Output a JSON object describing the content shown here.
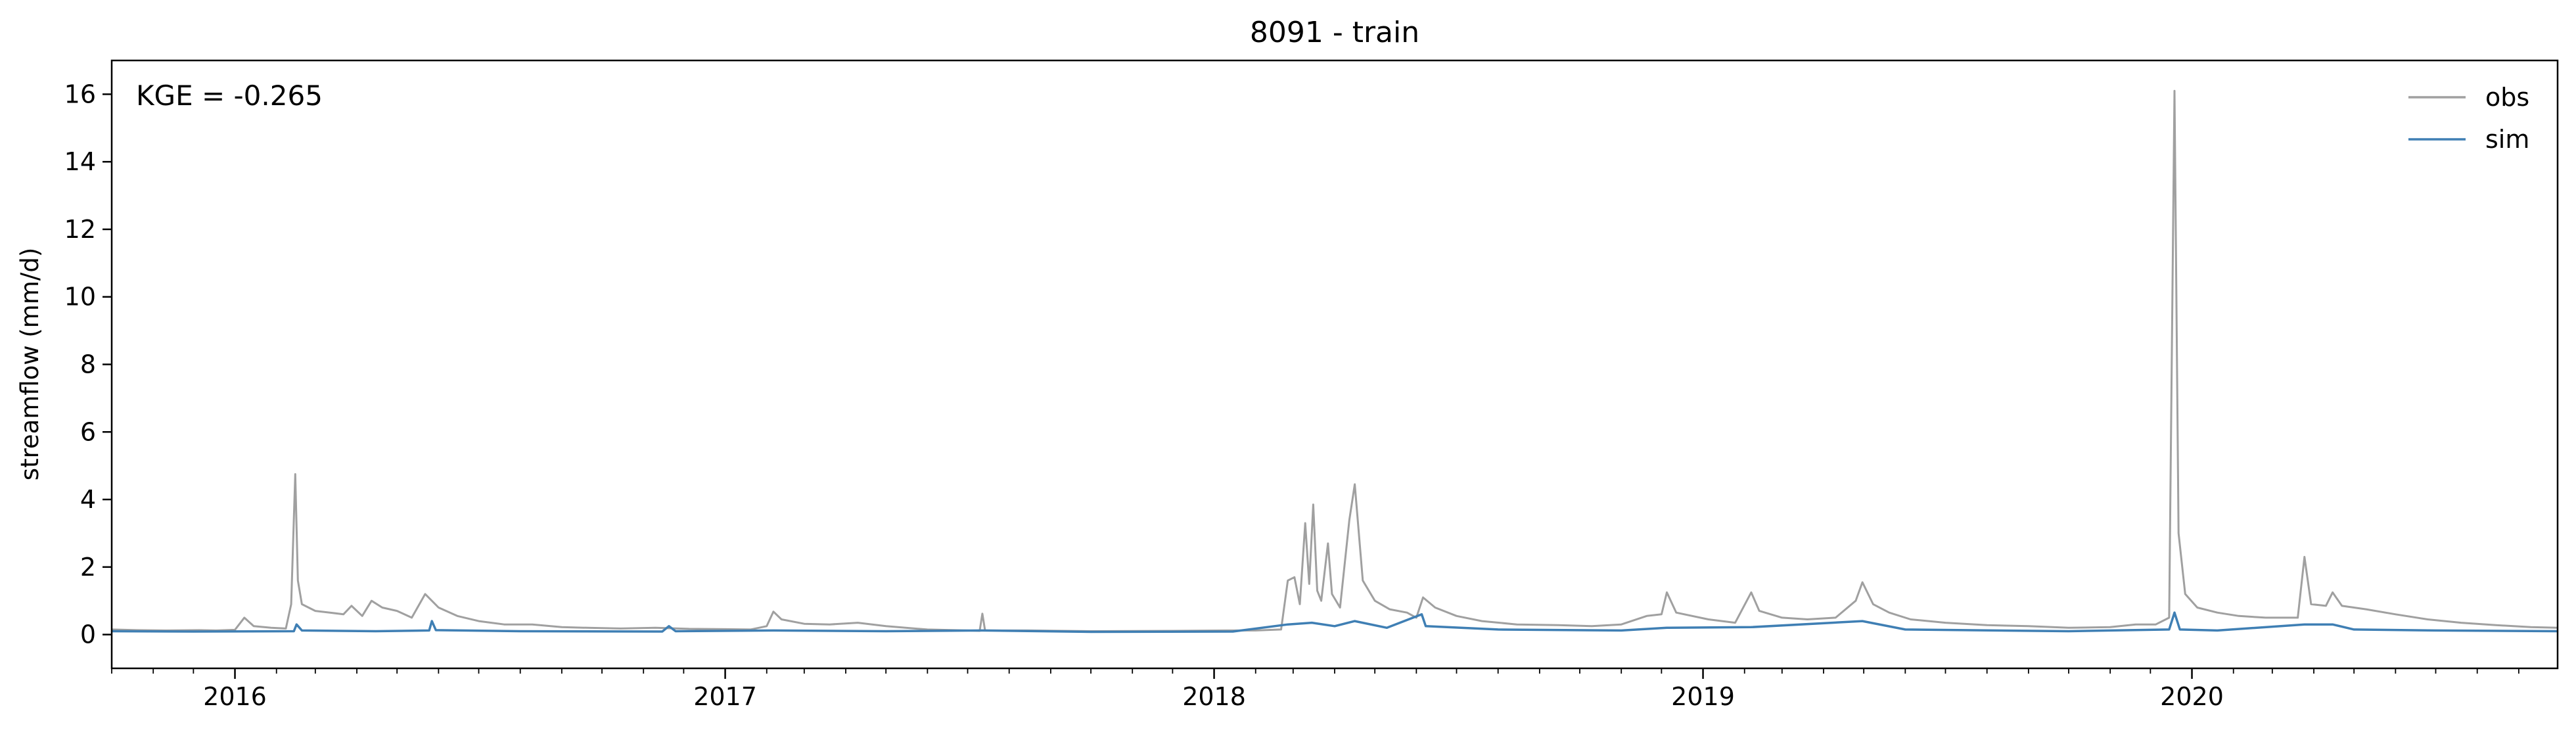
{
  "chart_data": {
    "type": "line",
    "title": "8091 - train",
    "xlabel": "",
    "ylabel": "streamflow (mm/d)",
    "annotation": "KGE = -0.265",
    "x_range": [
      "2015-10-01",
      "2020-09-30"
    ],
    "xticks": [
      "2016-01-01",
      "2017-01-01",
      "2018-01-01",
      "2019-01-01",
      "2020-01-01"
    ],
    "xtick_labels": [
      "2016",
      "2017",
      "2018",
      "2019",
      "2020"
    ],
    "minor_ticks": "monthly",
    "ylim": [
      -1,
      17
    ],
    "yticks": [
      0,
      2,
      4,
      6,
      8,
      10,
      12,
      14,
      16
    ],
    "grid": false,
    "legend_position": "top-right",
    "series": [
      {
        "name": "obs",
        "color": "#a0a0a0",
        "points": [
          [
            "2015-10-01",
            0.15
          ],
          [
            "2015-10-20",
            0.13
          ],
          [
            "2015-11-10",
            0.12
          ],
          [
            "2015-12-05",
            0.13
          ],
          [
            "2015-12-18",
            0.12
          ],
          [
            "2016-01-01",
            0.14
          ],
          [
            "2016-01-08",
            0.5
          ],
          [
            "2016-01-15",
            0.25
          ],
          [
            "2016-01-28",
            0.2
          ],
          [
            "2016-02-08",
            0.18
          ],
          [
            "2016-02-12",
            0.9
          ],
          [
            "2016-02-15",
            4.75
          ],
          [
            "2016-02-17",
            1.6
          ],
          [
            "2016-02-20",
            0.9
          ],
          [
            "2016-03-01",
            0.7
          ],
          [
            "2016-03-12",
            0.65
          ],
          [
            "2016-03-22",
            0.6
          ],
          [
            "2016-03-28",
            0.85
          ],
          [
            "2016-04-05",
            0.55
          ],
          [
            "2016-04-12",
            1.0
          ],
          [
            "2016-04-20",
            0.8
          ],
          [
            "2016-05-01",
            0.7
          ],
          [
            "2016-05-12",
            0.5
          ],
          [
            "2016-05-22",
            1.2
          ],
          [
            "2016-06-01",
            0.8
          ],
          [
            "2016-06-15",
            0.55
          ],
          [
            "2016-07-01",
            0.4
          ],
          [
            "2016-07-20",
            0.3
          ],
          [
            "2016-08-10",
            0.3
          ],
          [
            "2016-09-01",
            0.22
          ],
          [
            "2016-09-20",
            0.2
          ],
          [
            "2016-10-15",
            0.18
          ],
          [
            "2016-11-10",
            0.2
          ],
          [
            "2016-12-05",
            0.17
          ],
          [
            "2017-01-01",
            0.16
          ],
          [
            "2017-01-20",
            0.15
          ],
          [
            "2017-02-01",
            0.25
          ],
          [
            "2017-02-06",
            0.68
          ],
          [
            "2017-02-12",
            0.45
          ],
          [
            "2017-03-01",
            0.32
          ],
          [
            "2017-03-20",
            0.3
          ],
          [
            "2017-04-10",
            0.35
          ],
          [
            "2017-05-01",
            0.25
          ],
          [
            "2017-06-01",
            0.15
          ],
          [
            "2017-07-01",
            0.12
          ],
          [
            "2017-07-10",
            0.11
          ],
          [
            "2017-07-12",
            0.62
          ],
          [
            "2017-07-14",
            0.12
          ],
          [
            "2017-08-15",
            0.12
          ],
          [
            "2017-10-01",
            0.1
          ],
          [
            "2017-12-01",
            0.11
          ],
          [
            "2018-01-10",
            0.12
          ],
          [
            "2018-02-01",
            0.12
          ],
          [
            "2018-02-20",
            0.15
          ],
          [
            "2018-02-25",
            1.6
          ],
          [
            "2018-03-02",
            1.7
          ],
          [
            "2018-03-06",
            0.9
          ],
          [
            "2018-03-10",
            3.3
          ],
          [
            "2018-03-13",
            1.5
          ],
          [
            "2018-03-16",
            3.85
          ],
          [
            "2018-03-19",
            1.3
          ],
          [
            "2018-03-22",
            1.0
          ],
          [
            "2018-03-27",
            2.7
          ],
          [
            "2018-03-30",
            1.2
          ],
          [
            "2018-04-05",
            0.8
          ],
          [
            "2018-04-12",
            3.4
          ],
          [
            "2018-04-16",
            4.45
          ],
          [
            "2018-04-22",
            1.6
          ],
          [
            "2018-05-01",
            1.0
          ],
          [
            "2018-05-12",
            0.75
          ],
          [
            "2018-05-25",
            0.65
          ],
          [
            "2018-06-01",
            0.5
          ],
          [
            "2018-06-06",
            1.1
          ],
          [
            "2018-06-15",
            0.8
          ],
          [
            "2018-07-01",
            0.55
          ],
          [
            "2018-07-20",
            0.4
          ],
          [
            "2018-08-15",
            0.3
          ],
          [
            "2018-09-15",
            0.28
          ],
          [
            "2018-10-10",
            0.25
          ],
          [
            "2018-11-01",
            0.3
          ],
          [
            "2018-11-20",
            0.55
          ],
          [
            "2018-12-01",
            0.6
          ],
          [
            "2018-12-05",
            1.25
          ],
          [
            "2018-12-12",
            0.65
          ],
          [
            "2019-01-05",
            0.45
          ],
          [
            "2019-01-25",
            0.35
          ],
          [
            "2019-02-06",
            1.25
          ],
          [
            "2019-02-12",
            0.7
          ],
          [
            "2019-03-01",
            0.5
          ],
          [
            "2019-03-20",
            0.45
          ],
          [
            "2019-04-10",
            0.5
          ],
          [
            "2019-04-25",
            1.0
          ],
          [
            "2019-04-30",
            1.55
          ],
          [
            "2019-05-08",
            0.9
          ],
          [
            "2019-05-20",
            0.65
          ],
          [
            "2019-06-05",
            0.45
          ],
          [
            "2019-07-01",
            0.35
          ],
          [
            "2019-08-01",
            0.28
          ],
          [
            "2019-09-01",
            0.25
          ],
          [
            "2019-10-01",
            0.2
          ],
          [
            "2019-11-01",
            0.22
          ],
          [
            "2019-11-20",
            0.3
          ],
          [
            "2019-12-05",
            0.3
          ],
          [
            "2019-12-15",
            0.5
          ],
          [
            "2019-12-19",
            16.1
          ],
          [
            "2019-12-22",
            3.0
          ],
          [
            "2019-12-27",
            1.2
          ],
          [
            "2020-01-05",
            0.8
          ],
          [
            "2020-01-20",
            0.65
          ],
          [
            "2020-02-05",
            0.55
          ],
          [
            "2020-02-25",
            0.5
          ],
          [
            "2020-03-20",
            0.5
          ],
          [
            "2020-03-25",
            2.3
          ],
          [
            "2020-03-30",
            0.9
          ],
          [
            "2020-04-10",
            0.85
          ],
          [
            "2020-04-15",
            1.25
          ],
          [
            "2020-04-22",
            0.85
          ],
          [
            "2020-05-10",
            0.75
          ],
          [
            "2020-06-01",
            0.6
          ],
          [
            "2020-06-25",
            0.45
          ],
          [
            "2020-07-20",
            0.35
          ],
          [
            "2020-08-15",
            0.28
          ],
          [
            "2020-09-10",
            0.22
          ],
          [
            "2020-09-30",
            0.2
          ]
        ]
      },
      {
        "name": "sim",
        "color": "#3f7fb4",
        "points": [
          [
            "2015-10-01",
            0.1
          ],
          [
            "2015-12-01",
            0.09
          ],
          [
            "2016-02-14",
            0.1
          ],
          [
            "2016-02-16",
            0.3
          ],
          [
            "2016-02-20",
            0.12
          ],
          [
            "2016-04-15",
            0.1
          ],
          [
            "2016-05-25",
            0.12
          ],
          [
            "2016-05-27",
            0.4
          ],
          [
            "2016-05-30",
            0.13
          ],
          [
            "2016-08-01",
            0.1
          ],
          [
            "2016-11-15",
            0.09
          ],
          [
            "2016-11-20",
            0.25
          ],
          [
            "2016-11-25",
            0.1
          ],
          [
            "2017-02-06",
            0.12
          ],
          [
            "2017-05-01",
            0.1
          ],
          [
            "2017-07-12",
            0.12
          ],
          [
            "2017-10-01",
            0.08
          ],
          [
            "2018-01-15",
            0.09
          ],
          [
            "2018-02-25",
            0.3
          ],
          [
            "2018-03-15",
            0.35
          ],
          [
            "2018-04-01",
            0.25
          ],
          [
            "2018-04-16",
            0.4
          ],
          [
            "2018-05-10",
            0.2
          ],
          [
            "2018-06-05",
            0.6
          ],
          [
            "2018-06-08",
            0.25
          ],
          [
            "2018-08-01",
            0.15
          ],
          [
            "2018-11-01",
            0.12
          ],
          [
            "2018-12-05",
            0.2
          ],
          [
            "2019-02-06",
            0.22
          ],
          [
            "2019-04-30",
            0.4
          ],
          [
            "2019-06-01",
            0.15
          ],
          [
            "2019-10-01",
            0.1
          ],
          [
            "2019-12-15",
            0.15
          ],
          [
            "2019-12-19",
            0.65
          ],
          [
            "2019-12-23",
            0.15
          ],
          [
            "2020-01-20",
            0.12
          ],
          [
            "2020-03-25",
            0.3
          ],
          [
            "2020-04-15",
            0.3
          ],
          [
            "2020-05-01",
            0.15
          ],
          [
            "2020-07-01",
            0.12
          ],
          [
            "2020-09-30",
            0.1
          ]
        ]
      }
    ]
  }
}
